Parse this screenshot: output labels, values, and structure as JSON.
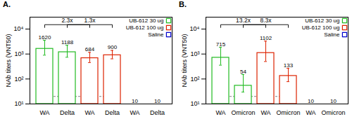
{
  "chart_data": [
    {
      "type": "bar",
      "title": "A.",
      "ylabel": "NAb titers (VNT50)",
      "categories": [
        "WA",
        "Delta"
      ],
      "series": [
        {
          "name": "UB-612 30 ug",
          "color": "#22bb22",
          "values": [
            1620,
            1188
          ],
          "error_low": [
            900,
            742.5
          ],
          "error_high": [
            3564,
            2257.2
          ]
        },
        {
          "name": "UB-612 100 ug",
          "color": "#dd2200",
          "values": [
            684,
            900
          ],
          "error_low": [
            456,
            642.857142857
          ],
          "error_high": [
            1162.8,
            1395
          ]
        },
        {
          "name": "Saline",
          "color": "#0000cc",
          "values": [
            10,
            10
          ],
          "error_low": [
            null,
            null
          ],
          "error_high": [
            null,
            null
          ]
        }
      ],
      "log": "y",
      "ylim": [
        10,
        30000
      ],
      "yticks": [
        {
          "value": 10,
          "label": "10¹"
        },
        {
          "value": 100,
          "label": "10²"
        },
        {
          "value": 1000,
          "label": "10³"
        },
        {
          "value": 10000,
          "label": "10⁴"
        }
      ],
      "legend": "upper right",
      "data_labels": true,
      "reference_line": {
        "value": 20,
        "series": [
          "UB-612 30 ug",
          "UB-612 100 ug"
        ]
      },
      "fold_changes": [
        {
          "label": "2.3x",
          "category": "WA",
          "series": [
            "UB-612 30 ug",
            "UB-612 100 ug"
          ]
        },
        {
          "label": "1.3x",
          "category": "Delta",
          "series": [
            "UB-612 30 ug",
            "UB-612 100 ug"
          ]
        }
      ]
    },
    {
      "type": "bar",
      "title": "B.",
      "ylabel": "NAb titers (VNT50)",
      "categories": [
        "WA",
        "Omicron"
      ],
      "series": [
        {
          "name": "UB-612 30 ug",
          "color": "#22bb22",
          "values": [
            715,
            54
          ],
          "error_low": [
            357.5,
            30
          ],
          "error_high": [
            1859,
            151.2
          ]
        },
        {
          "name": "UB-612 100 ug",
          "color": "#dd2200",
          "values": [
            1102,
            133
          ],
          "error_low": [
            500.909090909,
            78.2352941176
          ],
          "error_high": [
            3306,
            266
          ]
        },
        {
          "name": "Saline",
          "color": "#0000cc",
          "values": [
            10,
            10
          ],
          "error_low": [
            null,
            null
          ],
          "error_high": [
            null,
            null
          ]
        }
      ],
      "log": "y",
      "ylim": [
        10,
        30000
      ],
      "yticks": [
        {
          "value": 10,
          "label": "10¹"
        },
        {
          "value": 100,
          "label": "10²"
        },
        {
          "value": 1000,
          "label": "10³"
        },
        {
          "value": 10000,
          "label": "10⁴"
        }
      ],
      "legend": "upper right",
      "data_labels": true,
      "reference_line": {
        "value": 20,
        "series": [
          "UB-612 30 ug",
          "UB-612 100 ug"
        ]
      },
      "fold_changes": [
        {
          "label": "13.2x",
          "category": "WA",
          "series": [
            "UB-612 30 ug",
            "UB-612 100 ug"
          ]
        },
        {
          "label": "8.3x",
          "category": "Omicron",
          "series": [
            "UB-612 30 ug",
            "UB-612 100 ug"
          ]
        }
      ]
    }
  ]
}
